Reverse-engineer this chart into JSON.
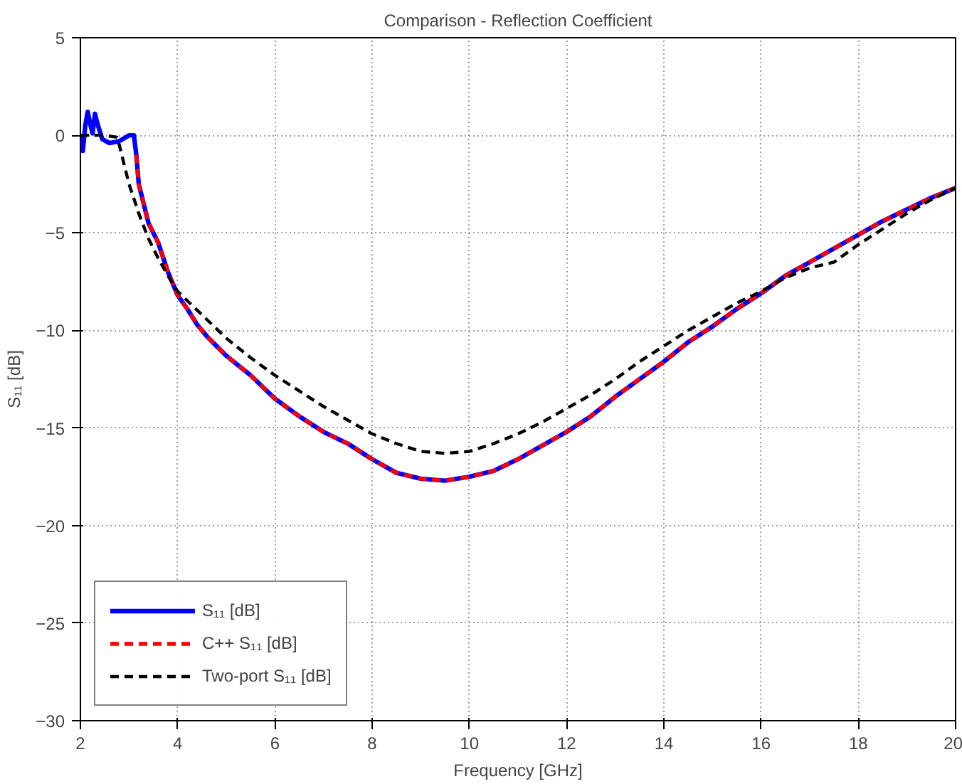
{
  "chart_data": {
    "type": "line",
    "title": "Comparison - Reflection Coefficient",
    "xlabel": "Frequency [GHz]",
    "ylabel": "S₁₁ [dB]",
    "xlim": [
      2,
      20
    ],
    "ylim": [
      -30,
      5
    ],
    "xticks": [
      2,
      4,
      6,
      8,
      10,
      12,
      14,
      16,
      18,
      20
    ],
    "yticks": [
      -30,
      -25,
      -20,
      -15,
      -10,
      -5,
      0,
      5
    ],
    "grid": true,
    "legend": "bottom left",
    "series": [
      {
        "name": "S₁₁ [dB]",
        "color": "#0000ff",
        "line_style": "solid",
        "x": [
          2,
          2.05,
          2.1,
          2.15,
          2.2,
          2.25,
          2.3,
          2.35,
          2.45,
          2.6,
          2.8,
          3.0,
          3.1,
          3.15,
          3.2,
          3.4,
          3.6,
          3.8,
          4.0,
          4.2,
          4.4,
          4.6,
          4.8,
          5,
          5.5,
          6,
          6.5,
          7,
          7.5,
          8,
          8.5,
          9,
          9.5,
          10,
          10.5,
          11,
          11.5,
          12,
          12.5,
          13,
          13.5,
          14,
          14.5,
          15,
          15.5,
          16,
          16.5,
          17,
          17.5,
          18,
          18.5,
          19,
          19.5,
          20
        ],
        "values": [
          0,
          -0.8,
          0.5,
          1.2,
          0.6,
          0.1,
          1.1,
          0.6,
          -0.2,
          -0.4,
          -0.3,
          0,
          0,
          -1,
          -2.5,
          -4.5,
          -5.5,
          -7,
          -8.2,
          -8.9,
          -9.7,
          -10.3,
          -10.8,
          -11.3,
          -12.3,
          -13.5,
          -14.4,
          -15.2,
          -15.8,
          -16.6,
          -17.3,
          -17.6,
          -17.7,
          -17.5,
          -17.2,
          -16.6,
          -15.9,
          -15.2,
          -14.4,
          -13.4,
          -12.5,
          -11.6,
          -10.6,
          -9.8,
          -8.9,
          -8.1,
          -7.2,
          -6.5,
          -5.8,
          -5.1,
          -4.4,
          -3.8,
          -3.2,
          -2.7
        ]
      },
      {
        "name": "C++ S₁₁ [dB]",
        "color": "#ff0000",
        "line_style": "dashed",
        "x": [
          3.15,
          3.2,
          3.4,
          3.6,
          3.8,
          4.0,
          4.2,
          4.4,
          4.6,
          4.8,
          5,
          5.5,
          6,
          6.5,
          7,
          7.5,
          8,
          8.5,
          9,
          9.5,
          10,
          10.5,
          11,
          11.5,
          12,
          12.5,
          13,
          13.5,
          14,
          14.5,
          15,
          15.5,
          16,
          16.5,
          17,
          17.5,
          18,
          18.5,
          19,
          19.5,
          20
        ],
        "values": [
          -1,
          -2.5,
          -4.5,
          -5.5,
          -7,
          -8.2,
          -8.9,
          -9.7,
          -10.3,
          -10.8,
          -11.3,
          -12.3,
          -13.5,
          -14.4,
          -15.2,
          -15.8,
          -16.6,
          -17.3,
          -17.6,
          -17.7,
          -17.5,
          -17.2,
          -16.6,
          -15.9,
          -15.2,
          -14.4,
          -13.4,
          -12.5,
          -11.6,
          -10.6,
          -9.8,
          -8.9,
          -8.1,
          -7.2,
          -6.5,
          -5.8,
          -5.1,
          -4.4,
          -3.8,
          -3.2,
          -2.7
        ]
      },
      {
        "name": "Two-port S₁₁ [dB]",
        "color": "#000000",
        "line_style": "dashed",
        "x": [
          2,
          2.5,
          2.75,
          2.8,
          3.0,
          3.2,
          3.4,
          3.6,
          3.8,
          4,
          4.5,
          5,
          5.5,
          6,
          6.5,
          7,
          7.5,
          8,
          8.5,
          9,
          9.5,
          10,
          10.5,
          11,
          11.5,
          12,
          12.5,
          13,
          13.5,
          14,
          14.5,
          15,
          15.5,
          16,
          16.5,
          17,
          17.5,
          18,
          18.5,
          19,
          19.5,
          20
        ],
        "values": [
          0,
          0,
          -0.1,
          -0.5,
          -2.5,
          -4,
          -5.3,
          -6.3,
          -7.2,
          -8.0,
          -9.2,
          -10.4,
          -11.4,
          -12.3,
          -13.1,
          -13.9,
          -14.6,
          -15.3,
          -15.8,
          -16.2,
          -16.3,
          -16.2,
          -15.8,
          -15.3,
          -14.7,
          -14.0,
          -13.3,
          -12.5,
          -11.6,
          -10.8,
          -10.0,
          -9.3,
          -8.6,
          -8.0,
          -7.3,
          -6.8,
          -6.5,
          -5.6,
          -4.8,
          -4.0,
          -3.3,
          -2.7
        ]
      }
    ]
  }
}
